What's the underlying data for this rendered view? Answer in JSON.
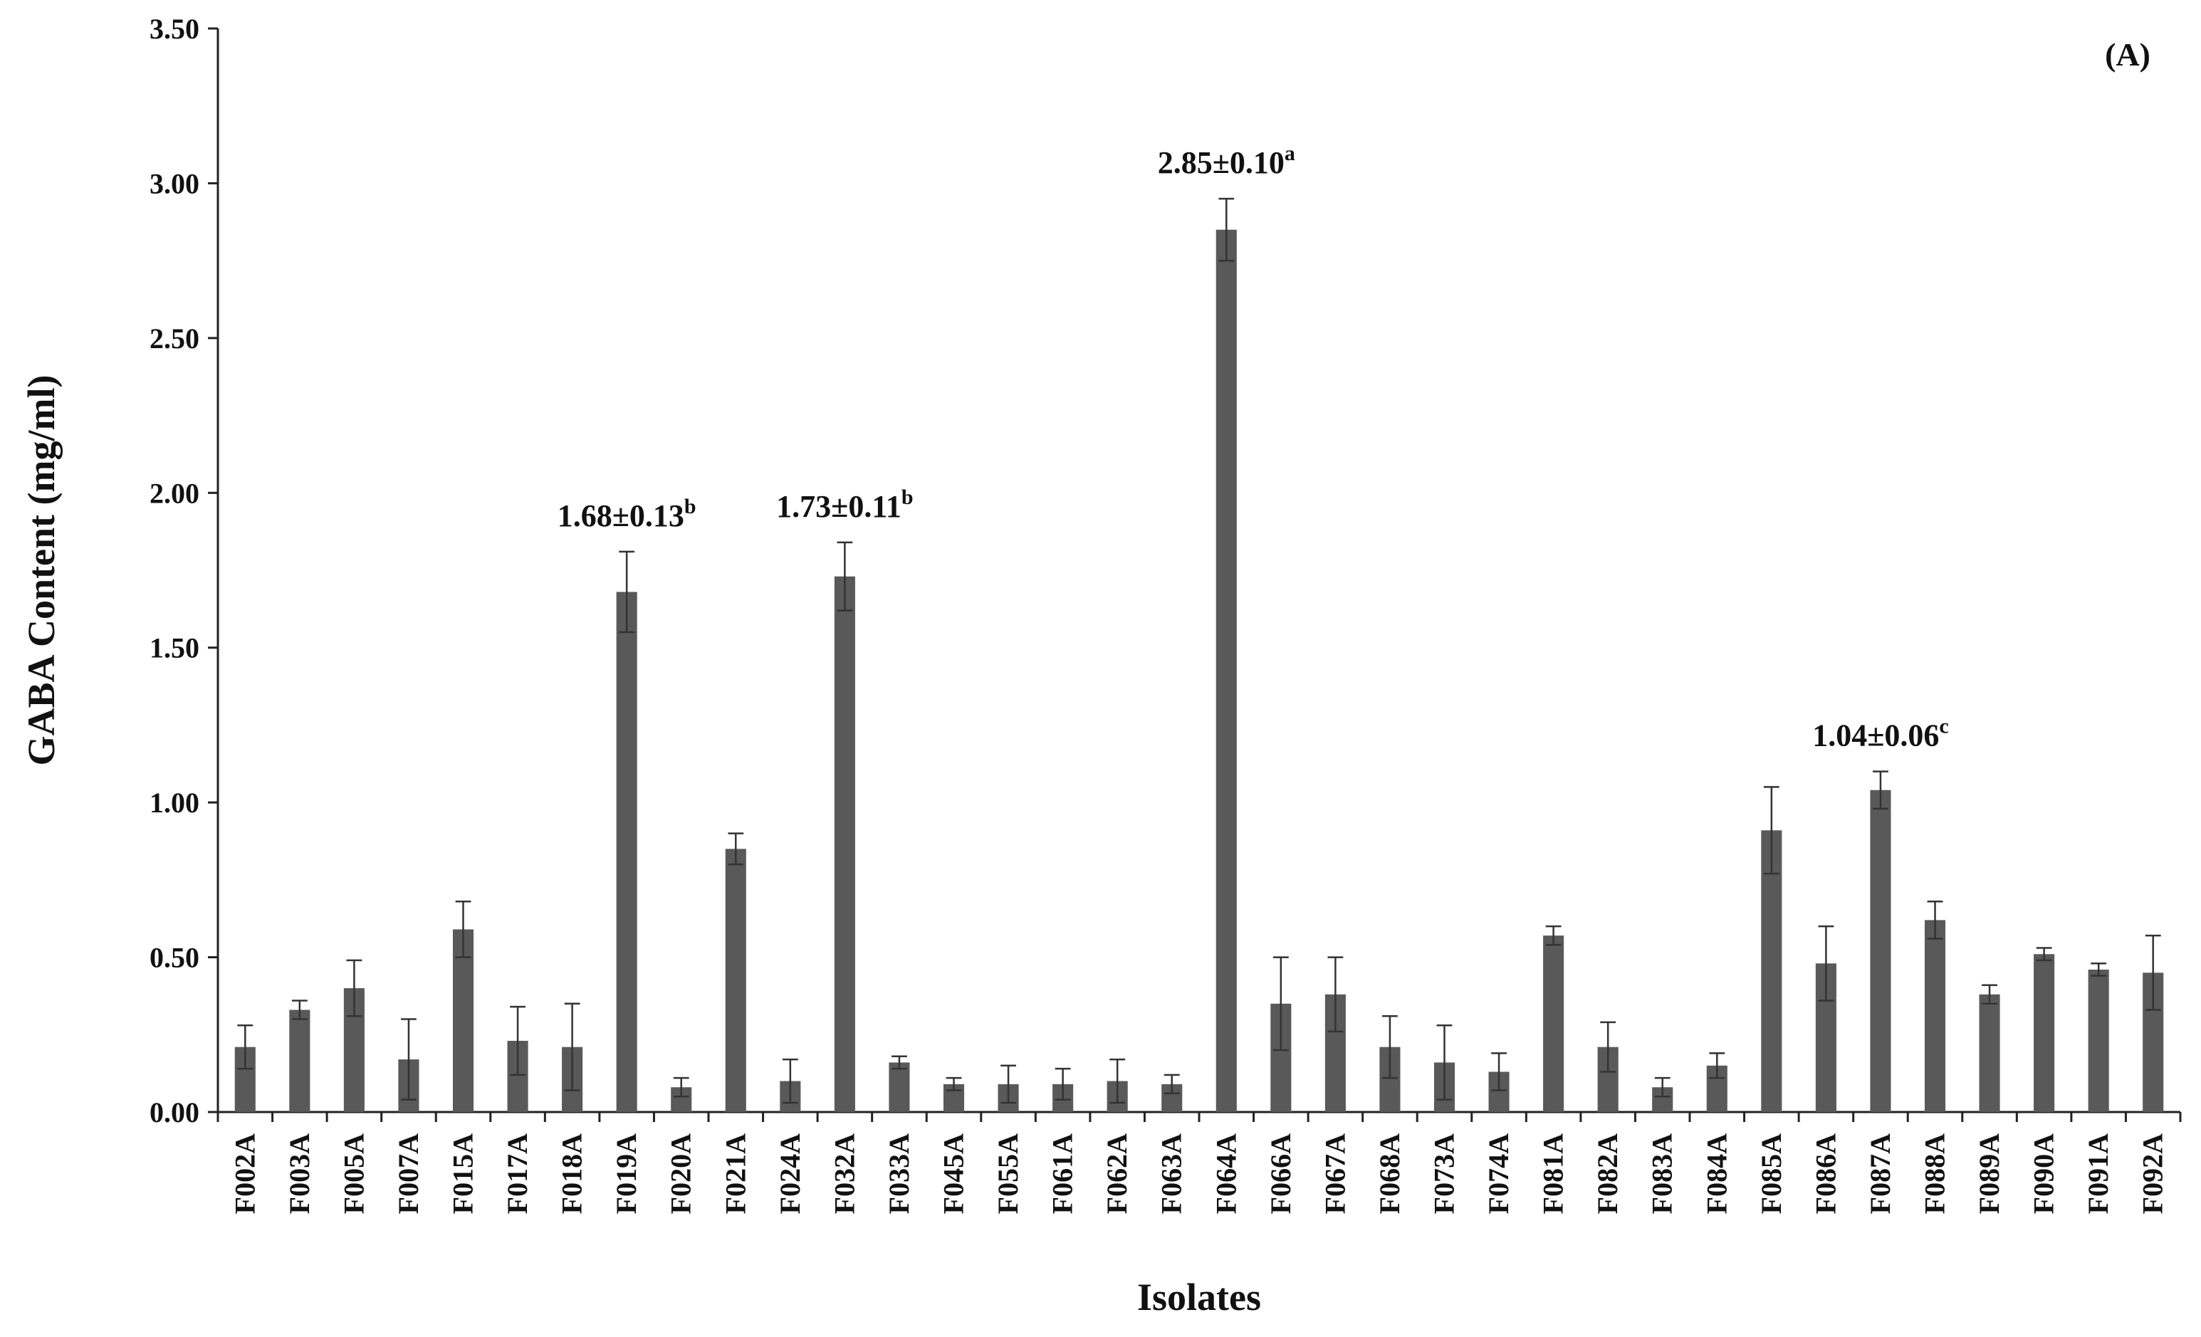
{
  "chart_data": {
    "type": "bar",
    "xlabel": "Isolates",
    "ylabel": "GABA Content (mg/ml)",
    "ylim": [
      0,
      3.5
    ],
    "yticks": [
      "0.00",
      "0.50",
      "1.00",
      "1.50",
      "2.00",
      "2.50",
      "3.00",
      "3.50"
    ],
    "panel_label": "(A)",
    "grid": false,
    "bar_color": "#595959",
    "categories": [
      "F002A",
      "F003A",
      "F005A",
      "F007A",
      "F015A",
      "F017A",
      "F018A",
      "F019A",
      "F020A",
      "F021A",
      "F024A",
      "F032A",
      "F033A",
      "F045A",
      "F055A",
      "F061A",
      "F062A",
      "F063A",
      "F064A",
      "F066A",
      "F067A",
      "F068A",
      "F073A",
      "F074A",
      "F081A",
      "F082A",
      "F083A",
      "F084A",
      "F085A",
      "F086A",
      "F087A",
      "F088A",
      "F089A",
      "F090A",
      "F091A",
      "F092A"
    ],
    "values": [
      0.21,
      0.33,
      0.4,
      0.17,
      0.59,
      0.23,
      0.21,
      1.68,
      0.08,
      0.85,
      0.1,
      1.73,
      0.16,
      0.09,
      0.09,
      0.09,
      0.1,
      0.09,
      2.85,
      0.35,
      0.38,
      0.21,
      0.16,
      0.13,
      0.57,
      0.21,
      0.08,
      0.15,
      0.91,
      0.48,
      1.04,
      0.62,
      0.38,
      0.51,
      0.46,
      0.45
    ],
    "errors": [
      0.07,
      0.03,
      0.09,
      0.13,
      0.09,
      0.11,
      0.14,
      0.13,
      0.03,
      0.05,
      0.07,
      0.11,
      0.02,
      0.02,
      0.06,
      0.05,
      0.07,
      0.03,
      0.1,
      0.15,
      0.12,
      0.1,
      0.12,
      0.06,
      0.03,
      0.08,
      0.03,
      0.04,
      0.14,
      0.12,
      0.06,
      0.06,
      0.03,
      0.02,
      0.02,
      0.12
    ],
    "annotations": [
      {
        "category": "F019A",
        "text": "1.68±0.13",
        "sup": "b"
      },
      {
        "category": "F032A",
        "text": "1.73±0.11",
        "sup": "b"
      },
      {
        "category": "F064A",
        "text": "2.85±0.10",
        "sup": "a"
      },
      {
        "category": "F087A",
        "text": "1.04±0.06",
        "sup": "c"
      }
    ]
  }
}
